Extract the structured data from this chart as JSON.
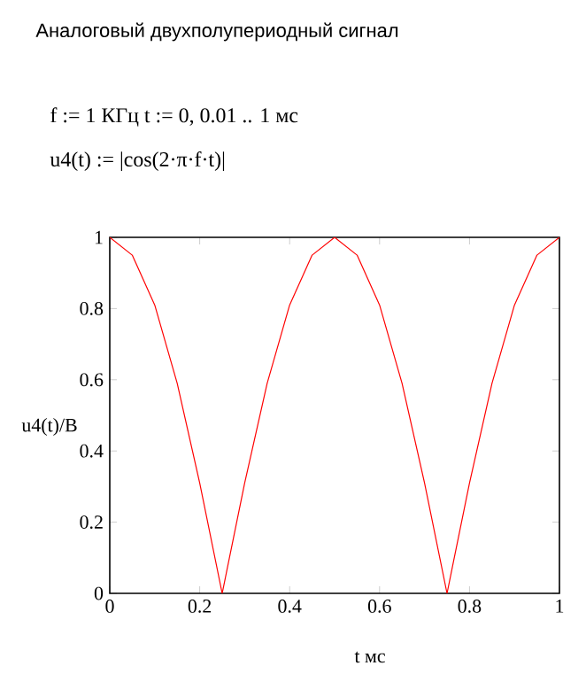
{
  "chart_data": {
    "type": "line",
    "title": "Аналоговый двухполупериодный сигнал",
    "annotations": [
      "f := 1   КГц      t := 0, 0.01 .. 1     мс",
      "u4(t) := |cos(2·π·f·t)|"
    ],
    "xlabel": "t     мс",
    "ylabel": "u4(t)/В",
    "x": [
      0,
      0.05,
      0.1,
      0.15,
      0.2,
      0.25,
      0.3,
      0.35,
      0.4,
      0.45,
      0.5,
      0.55,
      0.6,
      0.65,
      0.7,
      0.75,
      0.8,
      0.85,
      0.9,
      0.95,
      1
    ],
    "series": [
      {
        "color": "#ff0000",
        "values": [
          1,
          0.95,
          0.81,
          0.59,
          0.31,
          0,
          0.31,
          0.59,
          0.81,
          0.95,
          1,
          0.95,
          0.81,
          0.59,
          0.31,
          0,
          0.31,
          0.59,
          0.81,
          0.95,
          1
        ]
      }
    ],
    "xlim": [
      0,
      1
    ],
    "ylim": [
      0,
      1
    ],
    "xticks": [
      0,
      0.2,
      0.4,
      0.6,
      0.8,
      1
    ],
    "yticks": [
      0,
      0.2,
      0.4,
      0.6,
      0.8,
      1
    ],
    "grid": false,
    "marker": "none",
    "line_style": "solid"
  }
}
